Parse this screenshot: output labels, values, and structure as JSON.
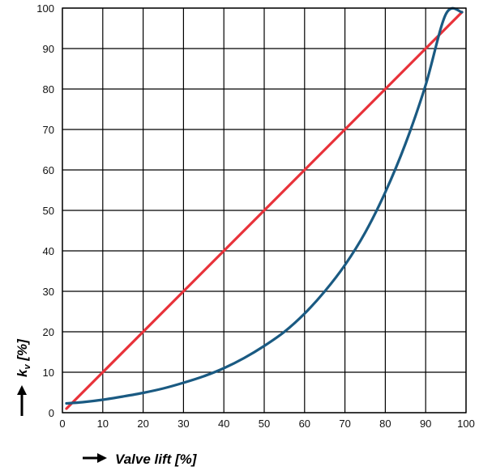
{
  "chart_data": {
    "type": "line",
    "xlabel": "Valve lift [%]",
    "ylabel_main": "k",
    "ylabel_sub": "v",
    "ylabel_suffix": " [%]",
    "xlim": [
      0,
      100
    ],
    "ylim": [
      0,
      100
    ],
    "x_ticks": [
      0,
      10,
      20,
      30,
      40,
      50,
      60,
      70,
      80,
      90,
      100
    ],
    "y_ticks": [
      0,
      10,
      20,
      30,
      40,
      50,
      60,
      70,
      80,
      90,
      100
    ],
    "grid": true,
    "legend": "none",
    "series": [
      {
        "color": "#e8323a",
        "x": [
          1,
          99
        ],
        "y": [
          1,
          99
        ]
      },
      {
        "color": "#1a5a82",
        "x": [
          1,
          5,
          10,
          15,
          20,
          25,
          30,
          35,
          40,
          45,
          50,
          55,
          60,
          65,
          70,
          75,
          80,
          85,
          90,
          95,
          99
        ],
        "y": [
          2.3,
          2.6,
          3.2,
          4.0,
          4.9,
          6.0,
          7.4,
          9.0,
          11.0,
          13.5,
          16.5,
          20.0,
          24.5,
          30.0,
          36.5,
          44.5,
          54.5,
          66.5,
          81.0,
          98.5,
          99
        ]
      }
    ]
  }
}
